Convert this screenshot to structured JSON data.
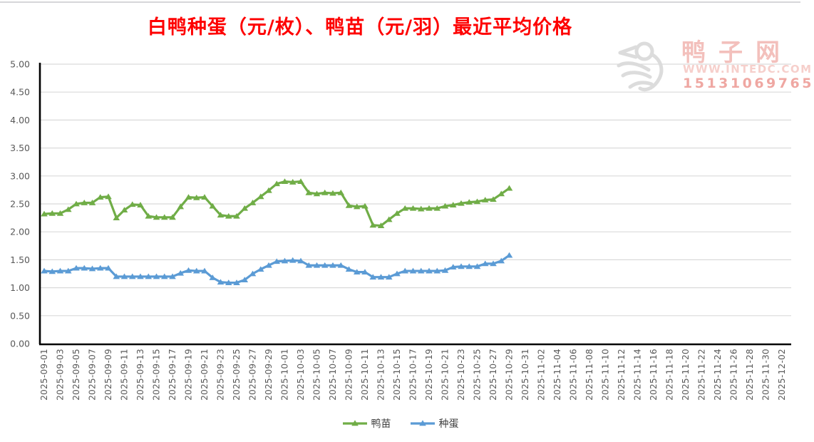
{
  "header": {
    "title": "白鸭种蛋（元/枚）、鸭苗（元/羽）最近平均价格",
    "title_color": "#fe0000"
  },
  "watermark": {
    "site_name": "鸭子网",
    "url": "WWW.INTEDC.COM",
    "phone": "15131069765",
    "logo": "duck-logo",
    "site_color": "#f3c0bc",
    "url_color": "#f6cfcb",
    "phone_color": "#efa7a2",
    "logo_color": "#dcdcdc"
  },
  "chart_data": {
    "type": "line",
    "title": "白鸭种蛋（元/枚）、鸭苗（元/羽）最近平均价格",
    "xlabel": "",
    "ylabel": "",
    "ylim": [
      0,
      5
    ],
    "ytick_step": 0.5,
    "yticks": [
      "0.00",
      "0.50",
      "1.00",
      "1.50",
      "2.00",
      "2.50",
      "3.00",
      "3.50",
      "4.00",
      "4.50",
      "5.00"
    ],
    "grid": true,
    "legend_position": "bottom",
    "axis_colors": {
      "gridline": "#dadada",
      "axis_line": "#000000",
      "tick_label": "#595959"
    },
    "x_axis_labels": [
      "2025-09-01",
      "2025-09-03",
      "2025-09-05",
      "2025-09-07",
      "2025-09-09",
      "2025-09-11",
      "2025-09-13",
      "2025-09-15",
      "2025-09-17",
      "2025-09-19",
      "2025-09-21",
      "2025-09-23",
      "2025-09-25",
      "2025-09-27",
      "2025-09-29",
      "2025-10-01",
      "2025-10-03",
      "2025-10-05",
      "2025-10-07",
      "2025-10-09",
      "2025-10-11",
      "2025-10-13",
      "2025-10-15",
      "2025-10-17",
      "2025-10-19",
      "2025-10-21",
      "2025-10-23",
      "2025-10-25",
      "2025-10-27",
      "2025-10-29",
      "2025-10-31",
      "2025-11-02",
      "2025-11-04",
      "2025-11-06",
      "2025-11-08",
      "2025-11-10",
      "2025-11-12",
      "2025-11-14",
      "2025-11-16",
      "2025-11-18",
      "2025-11-20",
      "2025-11-22",
      "2025-11-24",
      "2025-11-26",
      "2025-11-28",
      "2025-11-30",
      "2025-12-02"
    ],
    "dates": [
      "2025-09-01",
      "2025-09-02",
      "2025-09-03",
      "2025-09-04",
      "2025-09-05",
      "2025-09-06",
      "2025-09-07",
      "2025-09-08",
      "2025-09-09",
      "2025-09-10",
      "2025-09-11",
      "2025-09-12",
      "2025-09-13",
      "2025-09-14",
      "2025-09-15",
      "2025-09-16",
      "2025-09-17",
      "2025-09-18",
      "2025-09-19",
      "2025-09-20",
      "2025-09-21",
      "2025-09-22",
      "2025-09-23",
      "2025-09-24",
      "2025-09-25",
      "2025-09-26",
      "2025-09-27",
      "2025-09-28",
      "2025-09-29",
      "2025-09-30",
      "2025-10-01",
      "2025-10-02",
      "2025-10-03",
      "2025-10-04",
      "2025-10-05",
      "2025-10-06",
      "2025-10-07",
      "2025-10-08",
      "2025-10-09",
      "2025-10-10",
      "2025-10-11",
      "2025-10-12",
      "2025-10-13",
      "2025-10-14",
      "2025-10-15",
      "2025-10-16",
      "2025-10-17",
      "2025-10-18",
      "2025-10-19",
      "2025-10-20",
      "2025-10-21",
      "2025-10-22",
      "2025-10-23",
      "2025-10-24",
      "2025-10-25",
      "2025-10-26",
      "2025-10-27",
      "2025-10-28",
      "2025-10-29"
    ],
    "series": [
      {
        "name": "鸭苗",
        "unit": "元/羽",
        "color": "#70ad47",
        "marker": "triangle",
        "values": [
          2.32,
          2.33,
          2.33,
          2.4,
          2.5,
          2.52,
          2.52,
          2.62,
          2.63,
          2.25,
          2.39,
          2.49,
          2.48,
          2.28,
          2.26,
          2.26,
          2.26,
          2.45,
          2.62,
          2.61,
          2.62,
          2.46,
          2.3,
          2.28,
          2.28,
          2.42,
          2.52,
          2.63,
          2.74,
          2.86,
          2.9,
          2.89,
          2.9,
          2.7,
          2.68,
          2.7,
          2.69,
          2.7,
          2.47,
          2.45,
          2.46,
          2.12,
          2.11,
          2.22,
          2.33,
          2.42,
          2.42,
          2.41,
          2.42,
          2.42,
          2.46,
          2.48,
          2.51,
          2.53,
          2.54,
          2.57,
          2.58,
          2.68,
          2.78
        ]
      },
      {
        "name": "种蛋",
        "unit": "元/枚",
        "color": "#5b9bd5",
        "marker": "triangle",
        "values": [
          1.3,
          1.29,
          1.3,
          1.3,
          1.35,
          1.35,
          1.34,
          1.35,
          1.35,
          1.2,
          1.2,
          1.2,
          1.2,
          1.2,
          1.2,
          1.2,
          1.2,
          1.26,
          1.31,
          1.3,
          1.3,
          1.18,
          1.1,
          1.09,
          1.09,
          1.14,
          1.25,
          1.33,
          1.4,
          1.47,
          1.48,
          1.49,
          1.48,
          1.4,
          1.4,
          1.4,
          1.4,
          1.4,
          1.33,
          1.28,
          1.28,
          1.19,
          1.19,
          1.19,
          1.25,
          1.3,
          1.3,
          1.3,
          1.3,
          1.3,
          1.31,
          1.37,
          1.38,
          1.38,
          1.38,
          1.43,
          1.43,
          1.48,
          1.58
        ]
      }
    ]
  }
}
